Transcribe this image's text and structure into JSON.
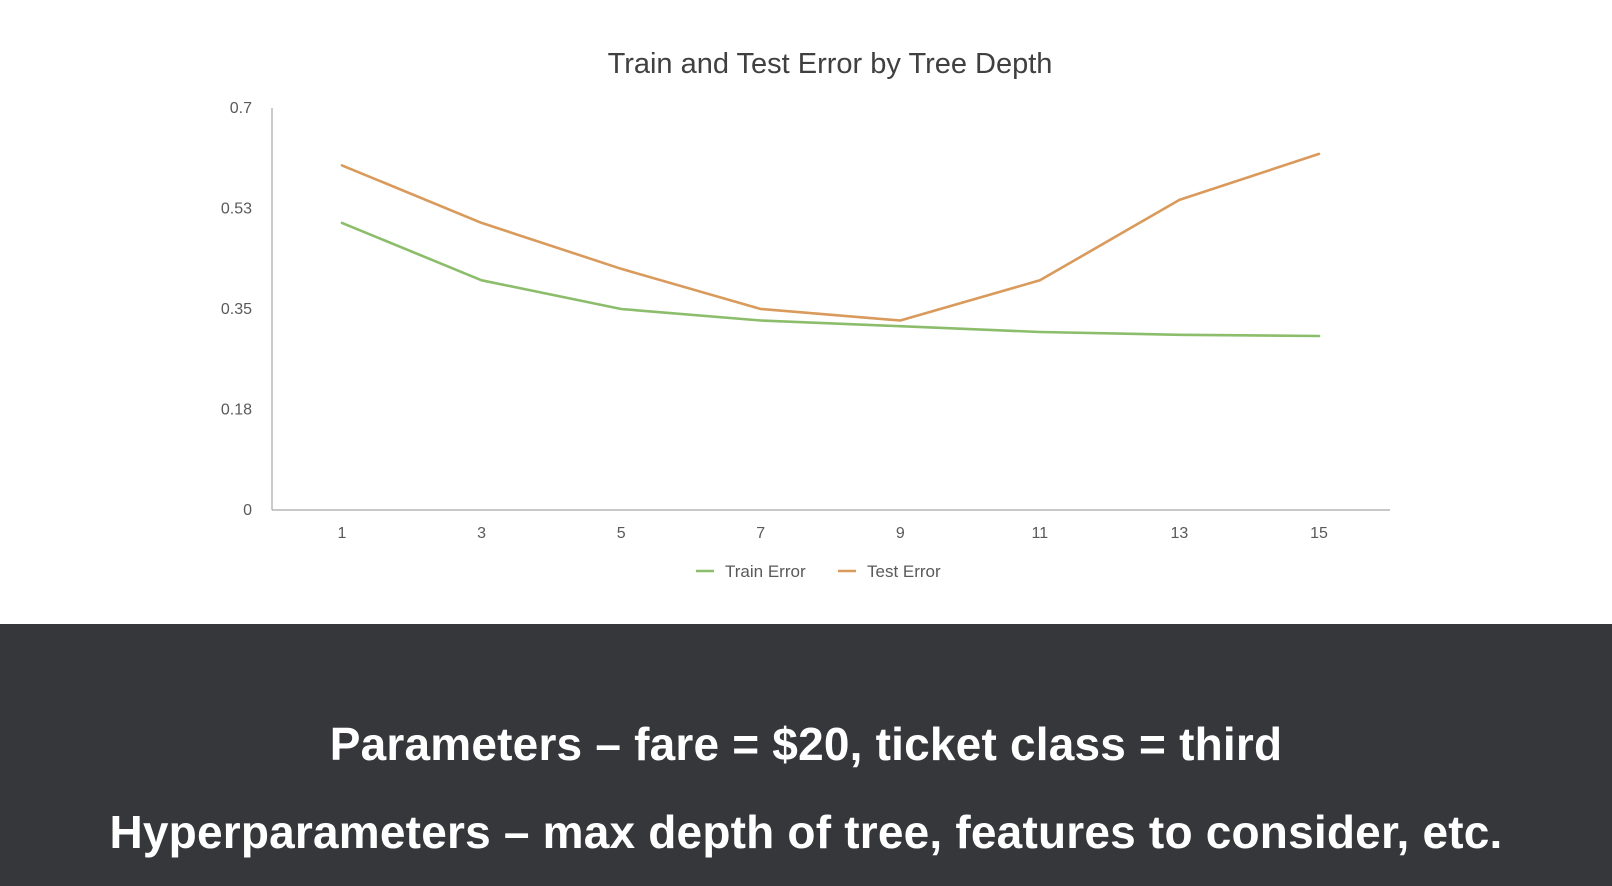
{
  "chart_data": {
    "type": "line",
    "title": "Train and Test Error by Tree Depth",
    "xlabel": "",
    "ylabel": "",
    "categories": [
      "1",
      "3",
      "5",
      "7",
      "9",
      "11",
      "13",
      "15"
    ],
    "y_ticks": [
      "0",
      "0.18",
      "0.35",
      "0.53",
      "0.7"
    ],
    "y_tick_values": [
      0,
      0.175,
      0.35,
      0.525,
      0.7
    ],
    "ylim": [
      0,
      0.7
    ],
    "grid": false,
    "legend_position": "bottom",
    "series": [
      {
        "name": "Train Error",
        "color": "#8bbd6b",
        "values": [
          0.5,
          0.4,
          0.35,
          0.33,
          0.32,
          0.31,
          0.305,
          0.303
        ]
      },
      {
        "name": "Test Error",
        "color": "#d99a5b",
        "values": [
          0.6,
          0.5,
          0.42,
          0.35,
          0.33,
          0.4,
          0.54,
          0.62
        ]
      }
    ],
    "axis_color": "#a6a6a6"
  },
  "caption": {
    "line1": "Parameters – fare = $20, ticket class = third",
    "line2": "Hyperparameters – max depth of tree, features to consider, etc."
  },
  "colors": {
    "caption_background": "#36373b",
    "caption_text": "#ffffff"
  }
}
